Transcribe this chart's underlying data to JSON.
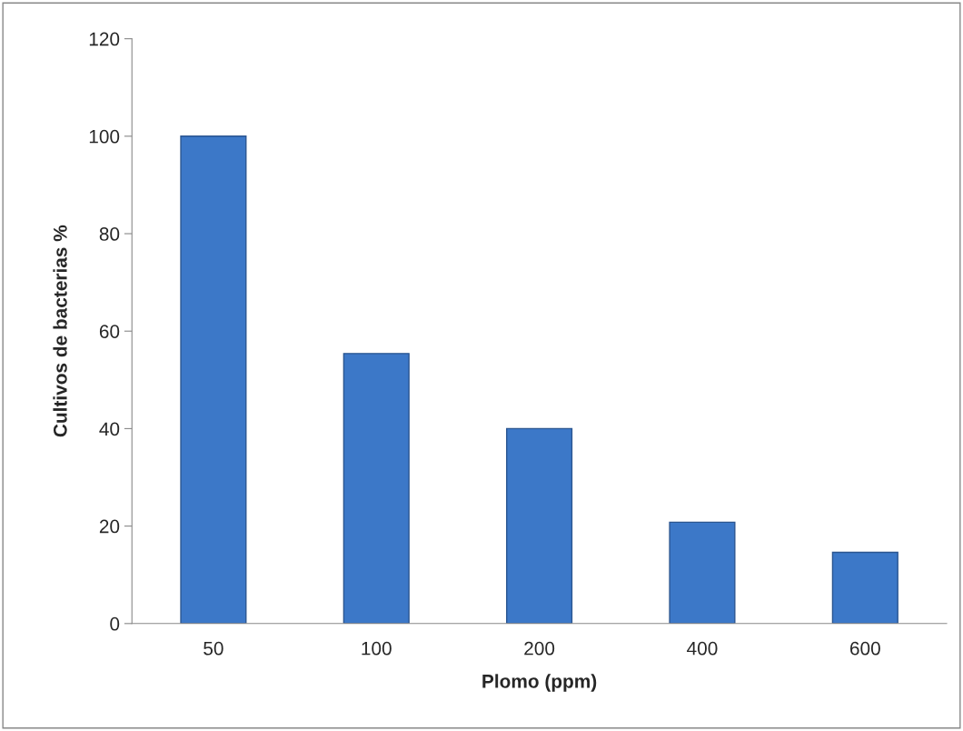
{
  "chart_data": {
    "type": "bar",
    "xlabel": "Plomo (ppm)",
    "ylabel": "Cultivos de bacterias %",
    "categories": [
      "50",
      "100",
      "200",
      "400",
      "600"
    ],
    "values": [
      100,
      55.4,
      40,
      20.8,
      14.6
    ],
    "color": "#3c78c8",
    "ylim": [
      0,
      120
    ],
    "yticks": [
      0,
      20,
      40,
      60,
      80,
      100,
      120
    ],
    "grid": false,
    "legend": false
  }
}
